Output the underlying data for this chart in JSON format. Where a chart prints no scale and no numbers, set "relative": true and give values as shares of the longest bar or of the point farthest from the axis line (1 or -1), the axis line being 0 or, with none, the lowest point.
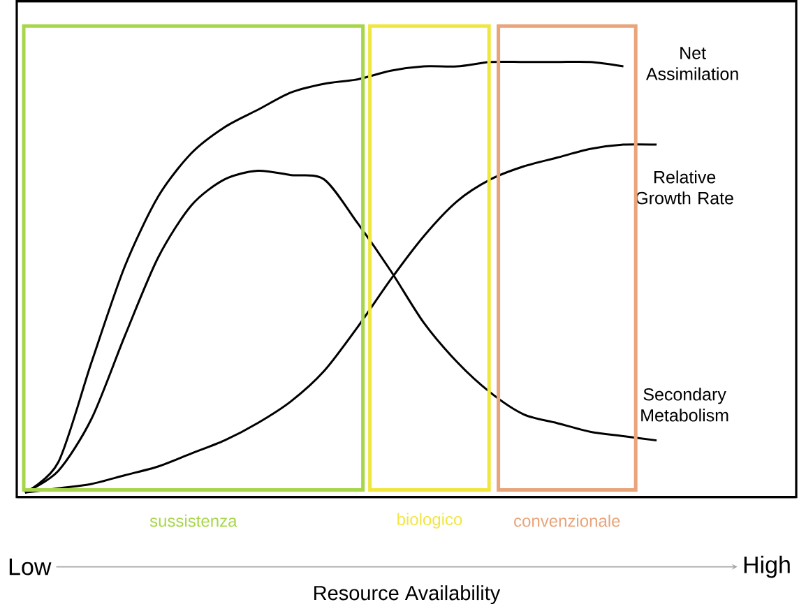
{
  "chart_data": {
    "type": "line",
    "relative": true,
    "xlabel": "Resource Availability",
    "categories": [
      null,
      null,
      null,
      null,
      null,
      null,
      null,
      null,
      null,
      null,
      null,
      null,
      null,
      null,
      null,
      null,
      null,
      null,
      null,
      null
    ],
    "series": [
      {
        "name": "Net Assimilation",
        "color": "#000000",
        "values": [
          0.01,
          0.08,
          0.31,
          0.53,
          0.69,
          0.79,
          0.85,
          0.89,
          0.93,
          0.95,
          0.96,
          0.98,
          0.99,
          0.99,
          1.0,
          1.0,
          1.0,
          1.0,
          0.99,
          null
        ]
      },
      {
        "name": "Relative Growth Rate",
        "color": "#000000",
        "values": [
          0.01,
          0.02,
          0.03,
          0.05,
          0.07,
          0.1,
          0.13,
          0.17,
          0.22,
          0.29,
          0.39,
          0.5,
          0.6,
          0.68,
          0.73,
          0.76,
          0.78,
          0.8,
          0.81,
          0.81
        ]
      },
      {
        "name": "Secondary Metabolism",
        "color": "#000000",
        "values": [
          0.01,
          0.06,
          0.18,
          0.37,
          0.55,
          0.67,
          0.73,
          0.75,
          0.74,
          0.73,
          0.63,
          0.52,
          0.4,
          0.31,
          0.24,
          0.19,
          0.17,
          0.15,
          0.14,
          0.13
        ]
      }
    ],
    "annotations": [
      "sussistenza",
      "biologico",
      "convenzionale",
      "Low",
      "High"
    ]
  }
}
